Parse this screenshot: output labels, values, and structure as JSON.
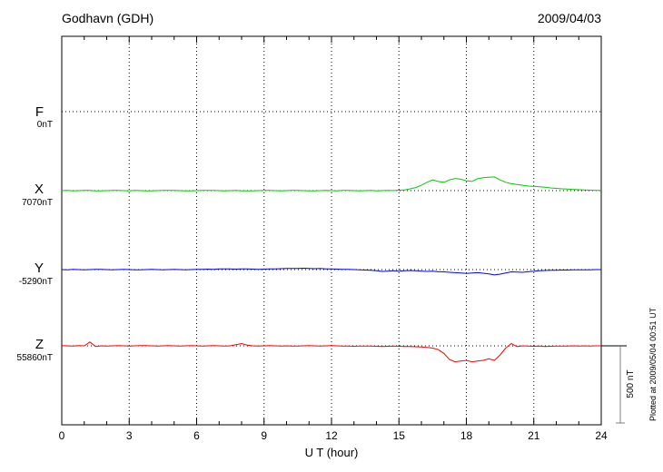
{
  "plotted_at": "Plotted at 2009/05/04 00:51 UT",
  "chart_data": {
    "type": "line",
    "title": "Godhavn (GDH)",
    "date": "2009/04/03",
    "xlabel": "U T (hour)",
    "x_range": [
      0,
      24
    ],
    "x_ticks": [
      0,
      3,
      6,
      9,
      12,
      15,
      18,
      21,
      24
    ],
    "x_start": 0,
    "x_step": 0.25,
    "values_unit": "nT offset from series baseline",
    "grid": "dotted vertical at 3h intervals, dotted horizontal at each series baseline",
    "scale": {
      "bar_nT": 500,
      "bar_label": "500 nT"
    },
    "series": [
      {
        "name": "F",
        "baseline_label": "0nT",
        "color": "#FFA500",
        "values": []
      },
      {
        "name": "X",
        "baseline_label": "7070nT",
        "color": "#00CC00",
        "values": [
          0,
          1,
          -1,
          0,
          2,
          1,
          -1,
          -2,
          0,
          1,
          2,
          0,
          -1,
          1,
          0,
          -2,
          -1,
          0,
          1,
          2,
          1,
          0,
          -1,
          -2,
          0,
          1,
          2,
          1,
          0,
          -1,
          0,
          1,
          -1,
          -2,
          -1,
          0,
          2,
          1,
          0,
          -1,
          0,
          1,
          2,
          0,
          -1,
          -2,
          0,
          1,
          0,
          -1,
          1,
          2,
          0,
          -1,
          0,
          1,
          -1,
          0,
          1,
          0,
          3,
          5,
          12,
          20,
          35,
          55,
          70,
          60,
          55,
          70,
          80,
          75,
          65,
          60,
          78,
          85,
          88,
          90,
          70,
          55,
          45,
          40,
          35,
          30,
          28,
          25,
          22,
          18,
          15,
          12,
          10,
          8,
          6,
          4,
          3,
          2,
          2
        ]
      },
      {
        "name": "Y",
        "baseline_label": "-5290nT",
        "color": "#0000FF",
        "values": [
          0,
          -1,
          1,
          0,
          -1,
          0,
          1,
          2,
          0,
          -1,
          0,
          1,
          0,
          -1,
          -2,
          0,
          1,
          0,
          -1,
          0,
          1,
          0,
          -1,
          0,
          1,
          2,
          3,
          2,
          4,
          5,
          4,
          3,
          5,
          4,
          3,
          2,
          3,
          4,
          5,
          6,
          7,
          8,
          7,
          9,
          8,
          6,
          7,
          5,
          4,
          3,
          2,
          1,
          0,
          -2,
          -3,
          -5,
          -8,
          -12,
          -10,
          -8,
          -10,
          -8,
          -6,
          -8,
          -10,
          -12,
          -10,
          -14,
          -15,
          -18,
          -20,
          -22,
          -25,
          -22,
          -20,
          -24,
          -28,
          -35,
          -30,
          -22,
          -15,
          -16,
          -18,
          -14,
          -10,
          -8,
          -6,
          -5,
          -4,
          -3,
          -3,
          -2,
          -2,
          -1,
          -1,
          0,
          0
        ]
      },
      {
        "name": "Z",
        "baseline_label": "55860nT",
        "color": "#FF0000",
        "values": [
          2,
          0,
          -1,
          1,
          0,
          25,
          -4,
          0,
          -1,
          0,
          1,
          0,
          -1,
          0,
          1,
          2,
          0,
          -1,
          0,
          1,
          0,
          -1,
          0,
          1,
          0,
          -1,
          0,
          1,
          0,
          -2,
          0,
          8,
          15,
          5,
          0,
          -1,
          0,
          1,
          0,
          -1,
          0,
          -2,
          -1,
          0,
          1,
          0,
          -1,
          0,
          1,
          0,
          -1,
          -2,
          -3,
          -2,
          -1,
          -2,
          -3,
          -4,
          -3,
          -2,
          -3,
          -4,
          -5,
          -6,
          -8,
          -10,
          -15,
          -25,
          -50,
          -90,
          -105,
          -100,
          -95,
          -105,
          -100,
          -95,
          -85,
          -95,
          -60,
          -15,
          15,
          -5,
          0,
          -2,
          -3,
          -2,
          -4,
          -3,
          -2,
          -1,
          -2,
          0,
          -1,
          0,
          -1,
          0,
          0
        ]
      }
    ]
  }
}
